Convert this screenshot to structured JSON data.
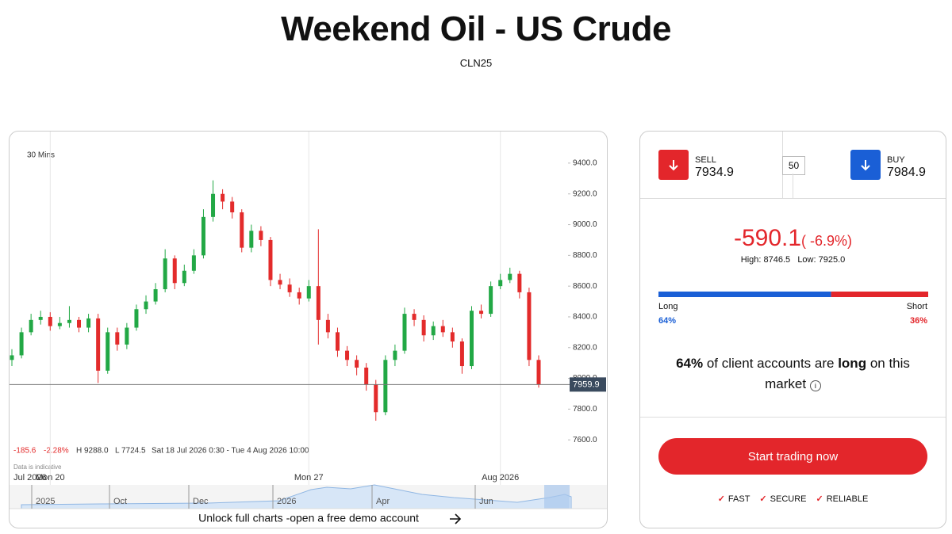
{
  "header": {
    "title": "Weekend Oil - US Crude",
    "subtitle": "CLN25"
  },
  "chart_data": {
    "type": "candlestick",
    "interval": "30 Mins",
    "categories": [
      "Jul 2026",
      null,
      null,
      null,
      "Mon 20",
      null,
      null,
      null,
      null,
      null,
      null,
      null,
      null,
      null,
      null,
      null,
      null,
      null,
      null,
      null,
      null,
      null,
      null,
      null,
      null,
      null,
      null,
      null,
      null,
      null,
      null,
      "Mon 27",
      null,
      null,
      null,
      null,
      null,
      null,
      null,
      null,
      null,
      null,
      null,
      null,
      null,
      null,
      null,
      null,
      null,
      null,
      null,
      "Aug 2026",
      null,
      null,
      null,
      null
    ],
    "open": [
      8120,
      8150,
      8300,
      8380,
      8400,
      8340,
      8360,
      8380,
      8330,
      8390,
      8050,
      8300,
      8220,
      8330,
      8450,
      8500,
      8580,
      8780,
      8620,
      8700,
      8800,
      9050,
      9200,
      9150,
      9080,
      8850,
      8960,
      8900,
      8640,
      8610,
      8560,
      8520,
      8600,
      8380,
      8300,
      8180,
      8120,
      8070,
      7960,
      7780,
      8120,
      8180,
      8420,
      8380,
      8280,
      8340,
      8300,
      8240,
      8080,
      8440,
      8420,
      8600,
      8640,
      8680,
      8560,
      8120
    ],
    "high": [
      8190,
      8330,
      8420,
      8440,
      8430,
      8400,
      8470,
      8400,
      8420,
      8420,
      8330,
      8330,
      8360,
      8480,
      8540,
      8620,
      8840,
      8800,
      8740,
      8840,
      9100,
      9288,
      9230,
      9180,
      9100,
      9000,
      8990,
      8920,
      8680,
      8650,
      8590,
      8640,
      8970,
      8420,
      8330,
      8210,
      8150,
      8100,
      7990,
      8150,
      8220,
      8460,
      8450,
      8410,
      8370,
      8380,
      8330,
      8260,
      8470,
      8480,
      8630,
      8680,
      8720,
      8700,
      8590,
      8150
    ],
    "low": [
      8080,
      8130,
      8280,
      8350,
      8310,
      8320,
      8330,
      8300,
      8300,
      7970,
      8030,
      8180,
      8190,
      8310,
      8420,
      8480,
      8560,
      8580,
      8600,
      8680,
      8780,
      9020,
      9100,
      9040,
      8820,
      8820,
      8860,
      8600,
      8580,
      8530,
      8480,
      8500,
      8220,
      8260,
      8140,
      8080,
      8020,
      7920,
      7724.5,
      7760,
      8080,
      8160,
      8340,
      8240,
      8250,
      8270,
      8200,
      8030,
      8060,
      8390,
      8400,
      8580,
      8620,
      8520,
      8080,
      7940
    ],
    "close": [
      8150,
      8300,
      8380,
      8400,
      8340,
      8360,
      8380,
      8330,
      8390,
      8050,
      8300,
      8220,
      8330,
      8450,
      8500,
      8580,
      8780,
      8620,
      8700,
      8800,
      9050,
      9200,
      9150,
      9080,
      8850,
      8960,
      8900,
      8640,
      8610,
      8560,
      8520,
      8600,
      8380,
      8300,
      8180,
      8120,
      8070,
      7960,
      7780,
      8120,
      8180,
      8420,
      8380,
      8280,
      8340,
      8300,
      8240,
      8080,
      8440,
      8420,
      8600,
      8640,
      8680,
      8560,
      8120,
      7960
    ],
    "up_color": "#22a845",
    "down_color": "#e32b2b",
    "ylim": [
      7570,
      9580
    ],
    "yticks": [
      {
        "value": 7600,
        "label": "7600.0"
      },
      {
        "value": 7800,
        "label": "7800.0"
      },
      {
        "value": 8000,
        "label": "8000.0"
      },
      {
        "value": 8200,
        "label": "8200.0"
      },
      {
        "value": 8400,
        "label": "8400.0"
      },
      {
        "value": 8600,
        "label": "8600.0"
      },
      {
        "value": 8800,
        "label": "8800.0"
      },
      {
        "value": 9000,
        "label": "9000.0"
      },
      {
        "value": 9200,
        "label": "9200.0"
      },
      {
        "value": 9400,
        "label": "9400.0"
      }
    ],
    "last": 7959.9,
    "stats": [
      "-185.6",
      "-2.28%",
      "H 9288.0",
      "L 7724.5",
      "Sat 18 Jul 2026 0:30 - Tue 4 Aug 2026 10:00"
    ],
    "note": "Data is indicative",
    "navigator_labels": [
      "2025",
      "Oct",
      "Dec",
      "2026",
      "Apr",
      "Jun"
    ],
    "footer": "Unlock full charts -open a free demo account"
  },
  "ticket": {
    "sell_label": "SELL",
    "sell_price": "7934.9",
    "spread": "50",
    "buy_label": "BUY",
    "buy_price": "7984.9",
    "change": "-590.1",
    "change_pct": "( -6.9%)",
    "high": "High: 8746.5",
    "low": "Low: 7925.0",
    "sentiment": {
      "labels": [
        "Long",
        "Short"
      ],
      "values": [
        64,
        36
      ],
      "value_labels": [
        "64%",
        "36%"
      ],
      "colors": [
        "#1a5fd6",
        "#e3262b"
      ]
    },
    "statement": [
      "64%",
      " of client accounts are ",
      "long",
      " on this market"
    ],
    "button": "Start trading now",
    "features": [
      "FAST",
      "SECURE",
      "RELIABLE"
    ]
  }
}
